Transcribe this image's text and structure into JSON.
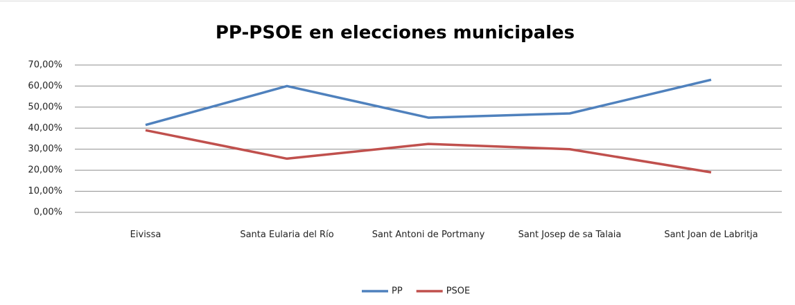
{
  "chart_data": {
    "type": "line",
    "title": "PP-PSOE en elecciones municipales",
    "categories": [
      "Eivissa",
      "Santa Eularia del Río",
      "Sant Antoni de Portmany",
      "Sant Josep de sa Talaia",
      "Sant Joan de Labritja"
    ],
    "series": [
      {
        "name": "PP",
        "color": "#4f81bd",
        "values": [
          41.5,
          60,
          45,
          47,
          63
        ]
      },
      {
        "name": "PSOE",
        "color": "#c0504d",
        "values": [
          39,
          25.5,
          32.5,
          30,
          19
        ]
      }
    ],
    "ylim": [
      0,
      70
    ],
    "yticks": [
      {
        "value": 0,
        "label": "0,00%"
      },
      {
        "value": 10,
        "label": "10,00%"
      },
      {
        "value": 20,
        "label": "20,00%"
      },
      {
        "value": 30,
        "label": "30,00%"
      },
      {
        "value": 40,
        "label": "40,00%"
      },
      {
        "value": 50,
        "label": "50,00%"
      },
      {
        "value": 60,
        "label": "60,00%"
      },
      {
        "value": 70,
        "label": "70,00%"
      }
    ],
    "grid": true,
    "legend": "bottom"
  }
}
